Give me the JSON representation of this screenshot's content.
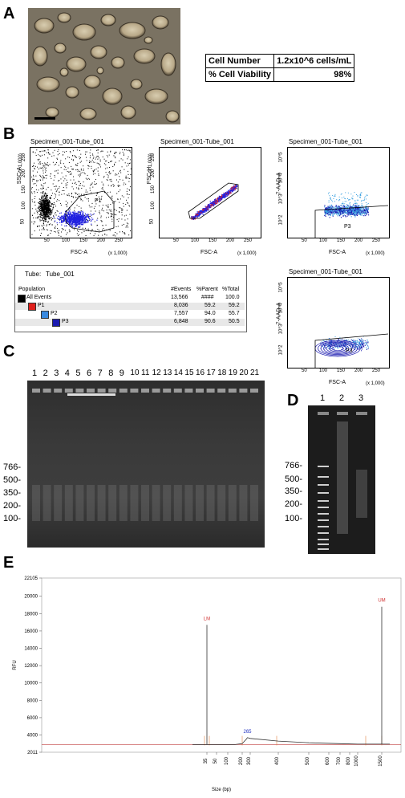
{
  "panelA": {
    "letter": "A",
    "table": [
      {
        "label": "Cell Number",
        "value": "1.2x10^6 cells/mL"
      },
      {
        "label": "% Cell Viability",
        "value": "98%"
      }
    ]
  },
  "panelB": {
    "letter": "B",
    "plots": [
      {
        "title": "Specimen_001-Tube_001",
        "ylabel": "SSC-A",
        "xlabel": "FSC-A",
        "yscale": "(x 1,000)",
        "xscale": "(x 1,000)"
      },
      {
        "title": "Specimen_001-Tube_001",
        "ylabel": "FSC-H",
        "xlabel": "FSC-A",
        "yscale": "(x 1,000)",
        "xscale": "(x 1,000)"
      },
      {
        "title": "Specimen_001-Tube_001",
        "ylabel": "7-AAD-A",
        "xlabel": "FSC-A",
        "xscale": "(x 1,000)",
        "gate": "P3"
      },
      {
        "title": "Specimen_001-Tube_001",
        "ylabel": "7-AAD-A",
        "xlabel": "FSC-A",
        "xscale": "(x 1,000)",
        "gate": "P3"
      }
    ],
    "linear_ticks": [
      "50",
      "100",
      "150",
      "200",
      "250"
    ],
    "log_ticks": [
      "10^2",
      "10^3",
      "10^4",
      "10^5"
    ],
    "stats": {
      "tube_label": "Tube:",
      "tube_value": "Tube_001",
      "headers": [
        "Population",
        "#Events",
        "%Parent",
        "%Total"
      ],
      "rows": [
        {
          "name": "All Events",
          "events": "13,566",
          "parent": "####",
          "total": "100.0",
          "color": "#000000"
        },
        {
          "name": "P1",
          "events": "8,036",
          "parent": "59.2",
          "total": "59.2",
          "color": "#e0201c"
        },
        {
          "name": "P2",
          "events": "7,557",
          "parent": "94.0",
          "total": "55.7",
          "color": "#3a8ae0"
        },
        {
          "name": "P3",
          "events": "6,848",
          "parent": "90.6",
          "total": "50.5",
          "color": "#1a1ab0"
        }
      ]
    }
  },
  "panelC": {
    "letter": "C",
    "lanes": [
      "1",
      "2",
      "3",
      "4",
      "5",
      "6",
      "7",
      "8",
      "9",
      "10",
      "11",
      "12",
      "13",
      "14",
      "15",
      "16",
      "17",
      "18",
      "19",
      "20",
      "21"
    ],
    "ladder": [
      "766-",
      "500-",
      "350-",
      "200-",
      "100-"
    ]
  },
  "panelD": {
    "letter": "D",
    "lanes": [
      "1",
      "2",
      "3"
    ],
    "ladder": [
      "766-",
      "500-",
      "350-",
      "200-",
      "100-"
    ]
  },
  "panelE": {
    "letter": "E",
    "ylabel": "RFU",
    "xlabel": "Size (bp)",
    "y_ticks": [
      "22105",
      "20000",
      "18000",
      "16000",
      "14000",
      "12000",
      "10000",
      "8000",
      "6000",
      "4000",
      "2011"
    ],
    "x_ticks": [
      "35",
      "50",
      "100",
      "200",
      "300",
      "400",
      "500",
      "600",
      "700",
      "800",
      "1000",
      "1500"
    ],
    "peak_labels": {
      "lower_marker": "LM",
      "upper_marker": "UM",
      "main_peak": "265"
    }
  },
  "chart_data": {
    "type": "line",
    "xlabel": "Size (bp)",
    "ylabel": "RFU",
    "ylim": [
      2011,
      22105
    ],
    "x_ticks": [
      35,
      50,
      100,
      200,
      300,
      400,
      500,
      600,
      700,
      800,
      1000,
      1500
    ],
    "annotations": [
      {
        "label": "LM",
        "x": 35,
        "y": 16700
      },
      {
        "label": "265",
        "x": 265,
        "y": 3700
      },
      {
        "label": "UM",
        "x": 1500,
        "y": 18800
      }
    ],
    "series": [
      {
        "values": [
          [
            20,
            2900
          ],
          [
            35,
            2900
          ],
          [
            35,
            16700
          ],
          [
            35,
            2900
          ],
          [
            150,
            2900
          ],
          [
            200,
            3000
          ],
          [
            250,
            3500
          ],
          [
            265,
            3700
          ],
          [
            300,
            3600
          ],
          [
            400,
            3300
          ],
          [
            500,
            3100
          ],
          [
            700,
            3000
          ],
          [
            1000,
            2950
          ],
          [
            1500,
            2950
          ],
          [
            1500,
            18800
          ],
          [
            1500,
            2950
          ],
          [
            2000,
            2950
          ]
        ]
      }
    ]
  }
}
